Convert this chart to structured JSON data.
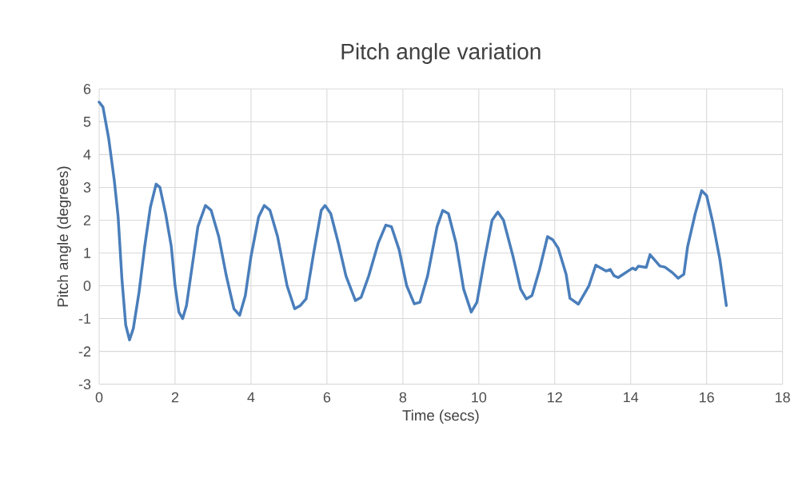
{
  "chart_data": {
    "type": "line",
    "title": "Pitch angle variation",
    "xlabel": "Time (secs)",
    "ylabel": "Pitch angle (degrees)",
    "xlim": [
      0,
      18
    ],
    "xticks": [
      0,
      2,
      4,
      6,
      8,
      10,
      12,
      14,
      16,
      18
    ],
    "ylim": [
      -3,
      6
    ],
    "yticks": [
      -3,
      -2,
      -1,
      0,
      1,
      2,
      3,
      4,
      5,
      6
    ],
    "grid": true,
    "line_style": "solid",
    "marker": "none",
    "series": [
      {
        "color": "#4a7ebb",
        "x": [
          0,
          0.1,
          0.25,
          0.4,
          0.5,
          0.6,
          0.7,
          0.8,
          0.9,
          1.05,
          1.2,
          1.35,
          1.5,
          1.6,
          1.75,
          1.9,
          2.0,
          2.1,
          2.2,
          2.3,
          2.45,
          2.6,
          2.8,
          2.95,
          3.15,
          3.35,
          3.55,
          3.7,
          3.85,
          4.0,
          4.2,
          4.35,
          4.5,
          4.7,
          4.95,
          5.15,
          5.3,
          5.45,
          5.65,
          5.85,
          5.95,
          6.1,
          6.3,
          6.5,
          6.75,
          6.9,
          7.1,
          7.35,
          7.55,
          7.7,
          7.9,
          8.1,
          8.3,
          8.45,
          8.65,
          8.9,
          9.05,
          9.2,
          9.4,
          9.6,
          9.8,
          9.95,
          10.15,
          10.35,
          10.5,
          10.65,
          10.9,
          11.1,
          11.25,
          11.4,
          11.6,
          11.81,
          11.95,
          12.09,
          12.3,
          12.4,
          12.62,
          12.9,
          13.08,
          13.35,
          13.46,
          13.56,
          13.67,
          14.05,
          14.13,
          14.2,
          14.41,
          14.51,
          14.77,
          14.9,
          15.1,
          15.25,
          15.4,
          15.5,
          15.7,
          15.87,
          16.0,
          16.16,
          16.35,
          16.52
        ],
        "values": [
          5.6,
          5.45,
          4.5,
          3.2,
          2.1,
          0.2,
          -1.2,
          -1.65,
          -1.3,
          -0.2,
          1.2,
          2.4,
          3.1,
          3.0,
          2.2,
          1.2,
          0.0,
          -0.8,
          -1.0,
          -0.6,
          0.6,
          1.8,
          2.45,
          2.3,
          1.5,
          0.3,
          -0.7,
          -0.9,
          -0.3,
          0.9,
          2.1,
          2.45,
          2.3,
          1.5,
          0.0,
          -0.7,
          -0.6,
          -0.4,
          1.0,
          2.3,
          2.45,
          2.2,
          1.3,
          0.3,
          -0.45,
          -0.35,
          0.3,
          1.3,
          1.85,
          1.8,
          1.1,
          0.0,
          -0.55,
          -0.5,
          0.3,
          1.8,
          2.3,
          2.2,
          1.3,
          -0.1,
          -0.8,
          -0.5,
          0.8,
          2.0,
          2.25,
          2.0,
          0.9,
          -0.1,
          -0.4,
          -0.3,
          0.5,
          1.5,
          1.4,
          1.15,
          0.35,
          -0.38,
          -0.56,
          0.0,
          0.63,
          0.45,
          0.5,
          0.31,
          0.25,
          0.54,
          0.49,
          0.6,
          0.56,
          0.95,
          0.6,
          0.57,
          0.4,
          0.23,
          0.35,
          1.2,
          2.2,
          2.9,
          2.75,
          1.95,
          0.8,
          -0.6
        ]
      }
    ]
  }
}
